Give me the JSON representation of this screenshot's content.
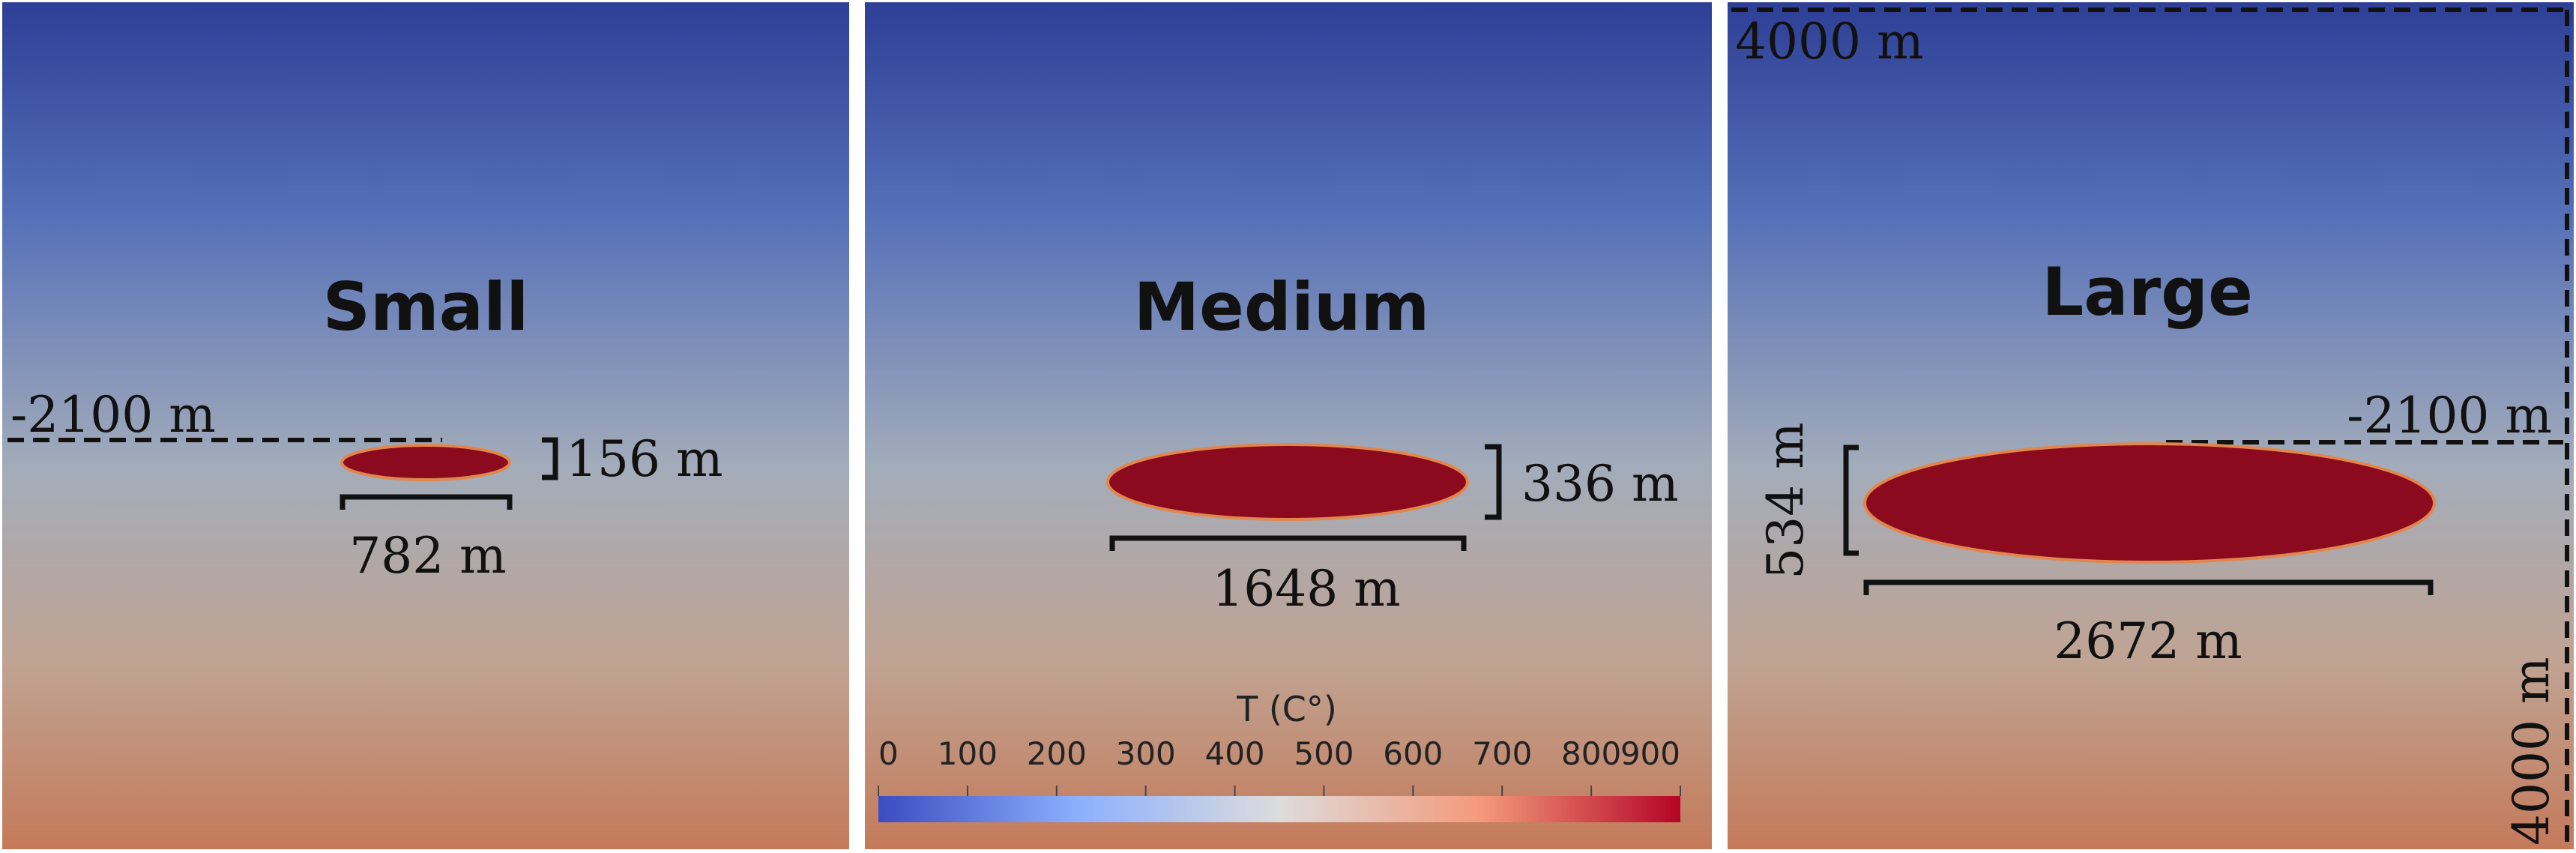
{
  "panels": [
    {
      "title": "Small",
      "depth_label": "-2100 m",
      "height_label": "156 m",
      "width_label": "782 m"
    },
    {
      "title": "Medium",
      "height_label": "336 m",
      "width_label": "1648 m"
    },
    {
      "title": "Large",
      "depth_label": "-2100 m",
      "height_label": "534 m",
      "width_label": "2672 m",
      "domain_width_label": "4000 m",
      "domain_height_label": "4000 m"
    }
  ],
  "colorbar": {
    "title": "T (C°)",
    "ticks": [
      "0",
      "100",
      "200",
      "300",
      "400",
      "500",
      "600",
      "700",
      "800",
      "900"
    ],
    "min": 0,
    "max": 900,
    "colors": [
      "#3b4cc0",
      "#8db0fe",
      "#dddcdc",
      "#f49a7b",
      "#b40426"
    ]
  },
  "colors": {
    "background_top": "#2e3f96",
    "background_middle": "#a3acba",
    "background_bottom": "#c47a5a",
    "magma_body": "#8b0a1e",
    "magma_outline": "#e0864e"
  }
}
